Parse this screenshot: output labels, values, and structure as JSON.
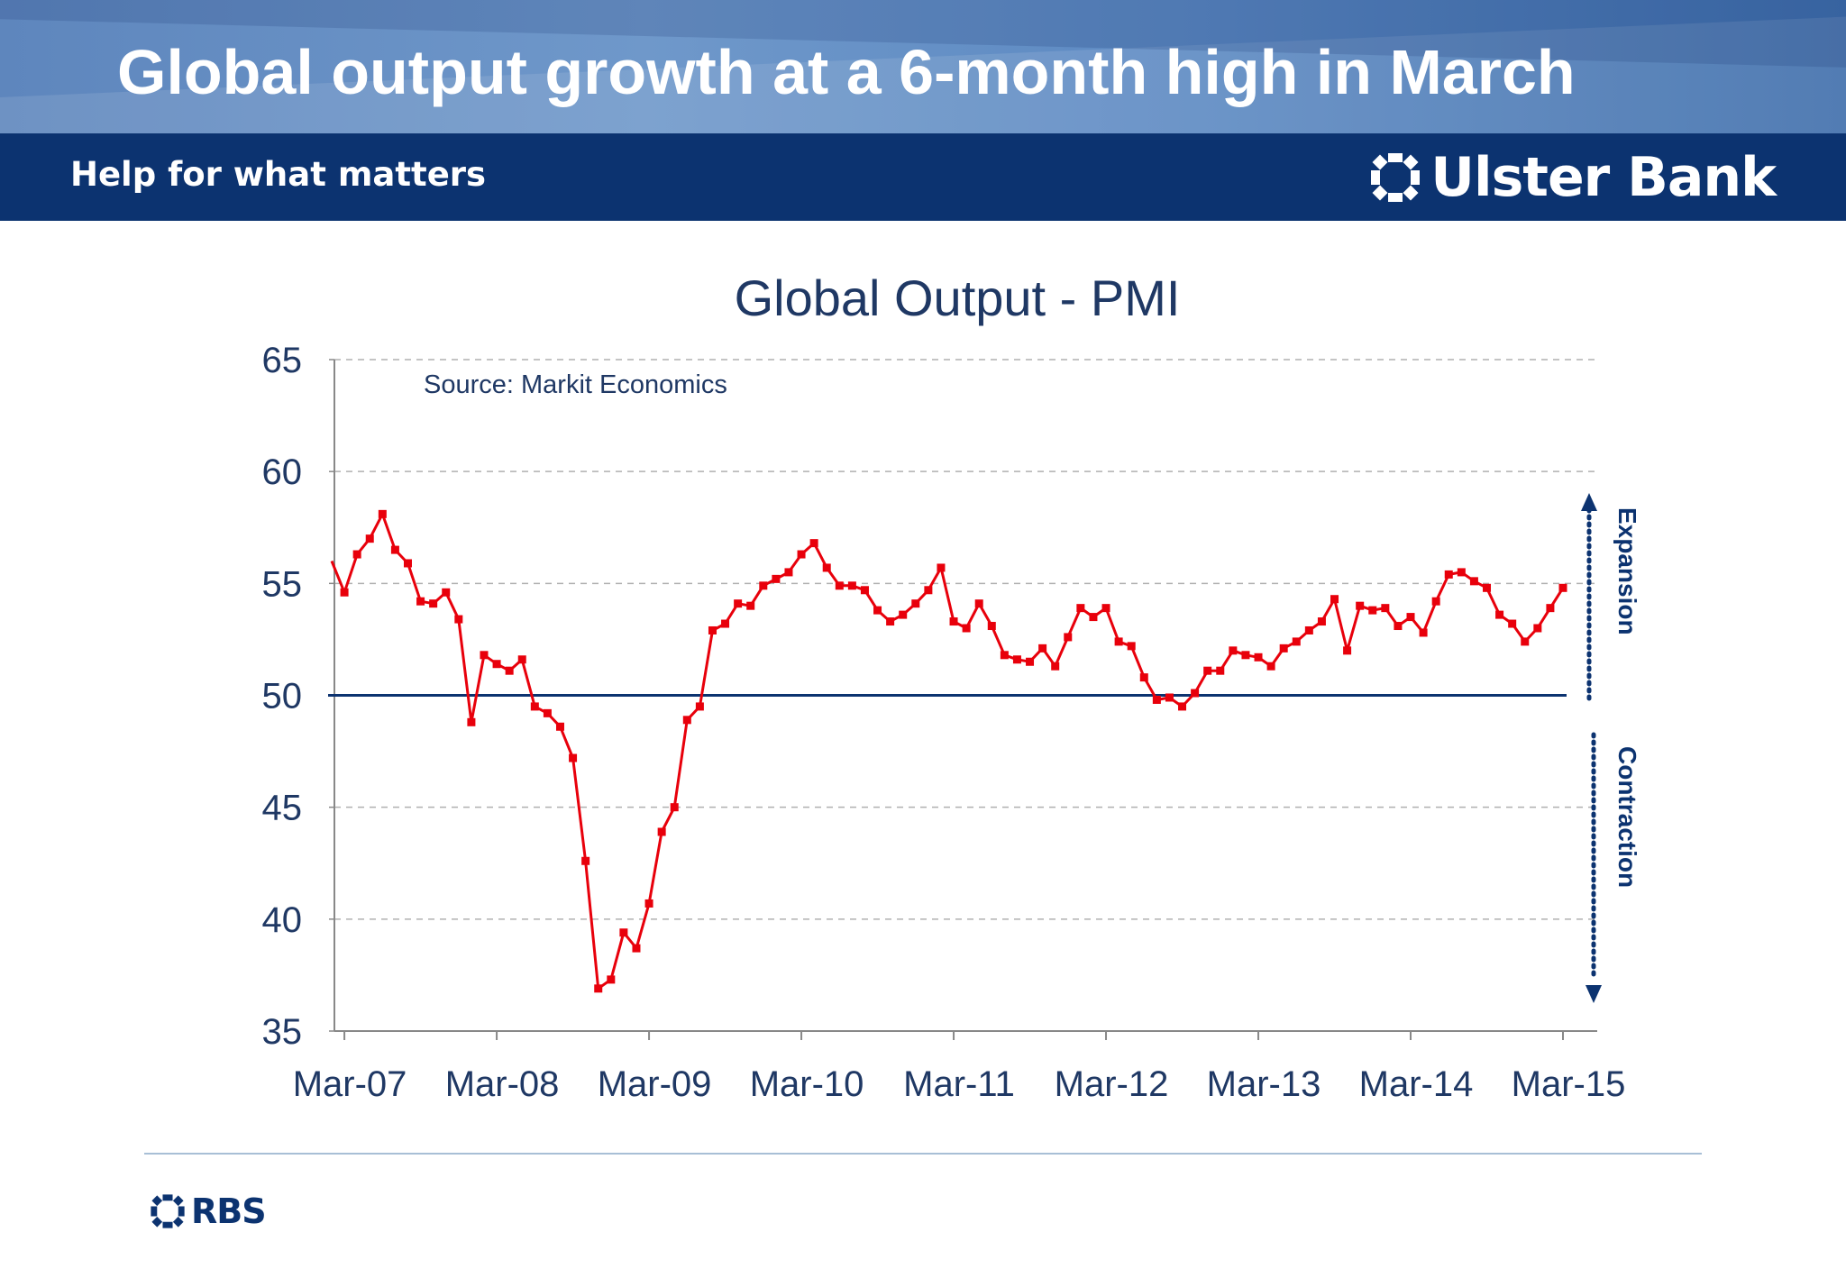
{
  "slide": {
    "title": "Global output growth at a 6-month high in March",
    "tagline": "Help for what matters",
    "brand_name": "Ulster Bank",
    "footer_brand": "RBS"
  },
  "colors": {
    "series": "#e8000b",
    "navy": "#0c3370",
    "axis_text": "#1f3864",
    "grid": "#b0b0b0"
  },
  "chart_data": {
    "type": "line",
    "title": "Global Output - PMI",
    "source": "Source: Markit Economics",
    "xlabel": "",
    "ylabel": "",
    "ylim": [
      35,
      65
    ],
    "yticks": [
      35,
      40,
      45,
      50,
      55,
      60,
      65
    ],
    "xticks": [
      "Mar-07",
      "Mar-08",
      "Mar-09",
      "Mar-10",
      "Mar-11",
      "Mar-12",
      "Mar-13",
      "Mar-14",
      "Mar-15"
    ],
    "x_start": "Feb-07",
    "x_end": "Mar-15",
    "reference_line": 50,
    "annotations": {
      "expansion": "Expansion",
      "contraction": "Contraction"
    },
    "grid": "dashed horizontal",
    "series": [
      {
        "name": "Global Output PMI",
        "values": [
          56.0,
          54.6,
          56.3,
          57.0,
          58.1,
          56.5,
          55.9,
          54.2,
          54.1,
          54.6,
          53.4,
          48.8,
          51.8,
          51.4,
          51.1,
          51.6,
          49.5,
          49.2,
          48.6,
          47.2,
          42.6,
          36.9,
          37.3,
          39.4,
          38.7,
          40.7,
          43.9,
          45.0,
          48.9,
          49.5,
          52.9,
          53.2,
          54.1,
          54.0,
          54.9,
          55.2,
          55.5,
          56.3,
          56.8,
          55.7,
          54.9,
          54.9,
          54.7,
          53.8,
          53.3,
          53.6,
          54.1,
          54.7,
          55.7,
          53.3,
          53.0,
          54.1,
          53.1,
          51.8,
          51.6,
          51.5,
          52.1,
          51.3,
          52.6,
          53.9,
          53.5,
          53.9,
          52.4,
          52.2,
          50.8,
          49.8,
          49.9,
          49.5,
          50.1,
          51.1,
          51.1,
          52.0,
          51.8,
          51.7,
          51.3,
          52.1,
          52.4,
          52.9,
          53.3,
          54.3,
          52.0,
          54.0,
          53.8,
          53.9,
          53.1,
          53.5,
          52.8,
          54.2,
          55.4,
          55.5,
          55.1,
          54.8,
          53.6,
          53.2,
          52.4,
          53.0,
          53.9,
          54.8
        ]
      }
    ]
  }
}
